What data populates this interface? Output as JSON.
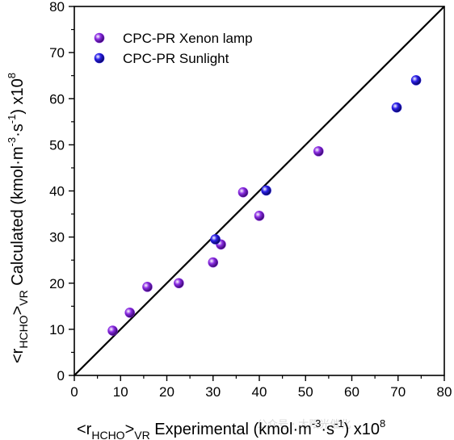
{
  "chart_data": {
    "type": "scatter",
    "xlim": [
      0,
      80
    ],
    "ylim": [
      0,
      80
    ],
    "x_ticks": [
      "0",
      "10",
      "20",
      "30",
      "40",
      "50",
      "60",
      "70",
      "80"
    ],
    "y_ticks": [
      "0",
      "10",
      "20",
      "30",
      "40",
      "50",
      "60",
      "70",
      "80"
    ],
    "grid": false,
    "legend_position": "top-left",
    "xlabel": {
      "prefix": "<r",
      "sub1": "HCHO",
      "mid": ">",
      "sub2": "VR",
      "main": " Experimental (kmol·m",
      "sup1": "-3",
      "dot": "·s",
      "sup2": "-1",
      "close": ") x10",
      "exp": "8"
    },
    "ylabel": {
      "prefix": "<r",
      "sub1": "HCHO",
      "mid": ">",
      "sub2": "VR",
      "main": " Calculated (kmol·m",
      "sup1": "-3",
      "dot": "·s",
      "sup2": "-1",
      "close": ") x10",
      "exp": "8"
    },
    "reference_line": {
      "from": [
        0,
        0
      ],
      "to": [
        80,
        80
      ],
      "color": "#000000"
    },
    "series": [
      {
        "name": "CPC-PR Xenon lamp",
        "color": "#8a2be2",
        "points": [
          {
            "x": 8.3,
            "y": 9.7
          },
          {
            "x": 12.0,
            "y": 13.6
          },
          {
            "x": 15.8,
            "y": 19.2
          },
          {
            "x": 22.6,
            "y": 20.0
          },
          {
            "x": 30.0,
            "y": 24.5
          },
          {
            "x": 31.7,
            "y": 28.4
          },
          {
            "x": 36.5,
            "y": 39.7
          },
          {
            "x": 40.0,
            "y": 34.6
          },
          {
            "x": 52.8,
            "y": 48.6
          }
        ]
      },
      {
        "name": "CPC-PR Sunlight",
        "color": "#2a1ee8",
        "points": [
          {
            "x": 30.5,
            "y": 29.5
          },
          {
            "x": 41.5,
            "y": 40.1
          },
          {
            "x": 69.7,
            "y": 58.1
          },
          {
            "x": 73.9,
            "y": 64.0
          }
        ]
      }
    ]
  },
  "watermark": "公众号 · 太阳光催化"
}
